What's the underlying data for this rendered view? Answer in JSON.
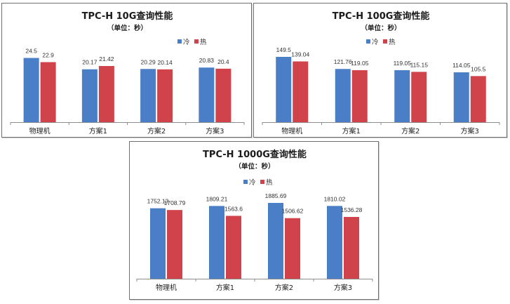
{
  "colors": {
    "cold": "#4a7ec6",
    "hot": "#d0434a",
    "axis": "#8c8c8c"
  },
  "chart_data": [
    {
      "type": "bar",
      "title": "TPC-H 10G查询性能",
      "subtitle": "（单位：秒）",
      "legend_position": "top-right",
      "categories": [
        "物理机",
        "方案1",
        "方案2",
        "方案3"
      ],
      "series": [
        {
          "name": "冷",
          "values": [
            24.5,
            20.17,
            20.29,
            20.83
          ]
        },
        {
          "name": "热",
          "values": [
            22.9,
            21.42,
            20.14,
            20.4
          ]
        }
      ],
      "ylim": [
        0,
        30
      ],
      "grid": false
    },
    {
      "type": "bar",
      "title": "TPC-H 100G查询性能",
      "subtitle": "（单位：秒）",
      "legend_position": "top-right",
      "categories": [
        "物理机",
        "方案1",
        "方案2",
        "方案3"
      ],
      "series": [
        {
          "name": "冷",
          "values": [
            149.5,
            121.76,
            119.05,
            114.05
          ]
        },
        {
          "name": "热",
          "values": [
            139.04,
            119.05,
            115.15,
            105.5
          ]
        }
      ],
      "ylim": [
        0,
        180
      ],
      "grid": false
    },
    {
      "type": "bar",
      "title": "TPC-H 1000G查询性能",
      "subtitle": "（单位：秒）",
      "legend_position": "top-right",
      "categories": [
        "物理机",
        "方案1",
        "方案2",
        "方案3"
      ],
      "series": [
        {
          "name": "冷",
          "values": [
            1752.13,
            1809.21,
            1885.69,
            1810.02
          ]
        },
        {
          "name": "热",
          "values": [
            1708.79,
            1563.6,
            1506.62,
            1536.28
          ]
        }
      ],
      "ylim": [
        0,
        2200
      ],
      "grid": false
    }
  ]
}
